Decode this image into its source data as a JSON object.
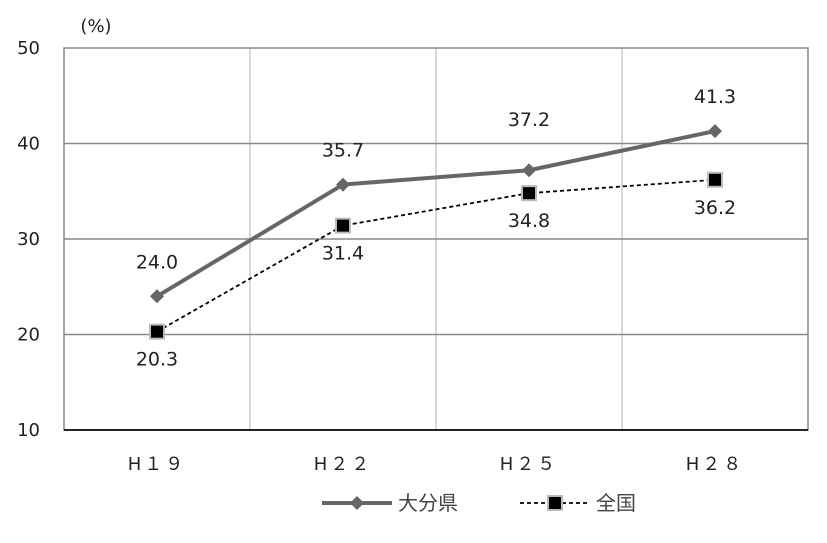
{
  "chart_data": {
    "type": "line",
    "title": "",
    "xlabel": "",
    "ylabel": "",
    "y_unit_label": "(%)",
    "categories": [
      "H19",
      "H22",
      "H25",
      "H28"
    ],
    "category_labels": [
      "H１９",
      "H２２",
      "H２５",
      "H２８"
    ],
    "ylim": [
      10,
      50
    ],
    "yticks": [
      10,
      20,
      30,
      40,
      50
    ],
    "grid": {
      "horizontal": true,
      "vertical": true
    },
    "legend_position": "bottom",
    "series": [
      {
        "name": "大分県",
        "values": [
          24.0,
          35.7,
          37.2,
          41.3
        ],
        "value_labels": [
          "24.0",
          "35.7",
          "37.2",
          "41.3"
        ],
        "color": "#666666",
        "line_style": "solid",
        "marker": "diamond"
      },
      {
        "name": "全国",
        "values": [
          20.3,
          31.4,
          34.8,
          36.2
        ],
        "value_labels": [
          "20.3",
          "31.4",
          "34.8",
          "36.2"
        ],
        "color": "#000000",
        "line_style": "dashed",
        "marker": "square"
      }
    ]
  }
}
